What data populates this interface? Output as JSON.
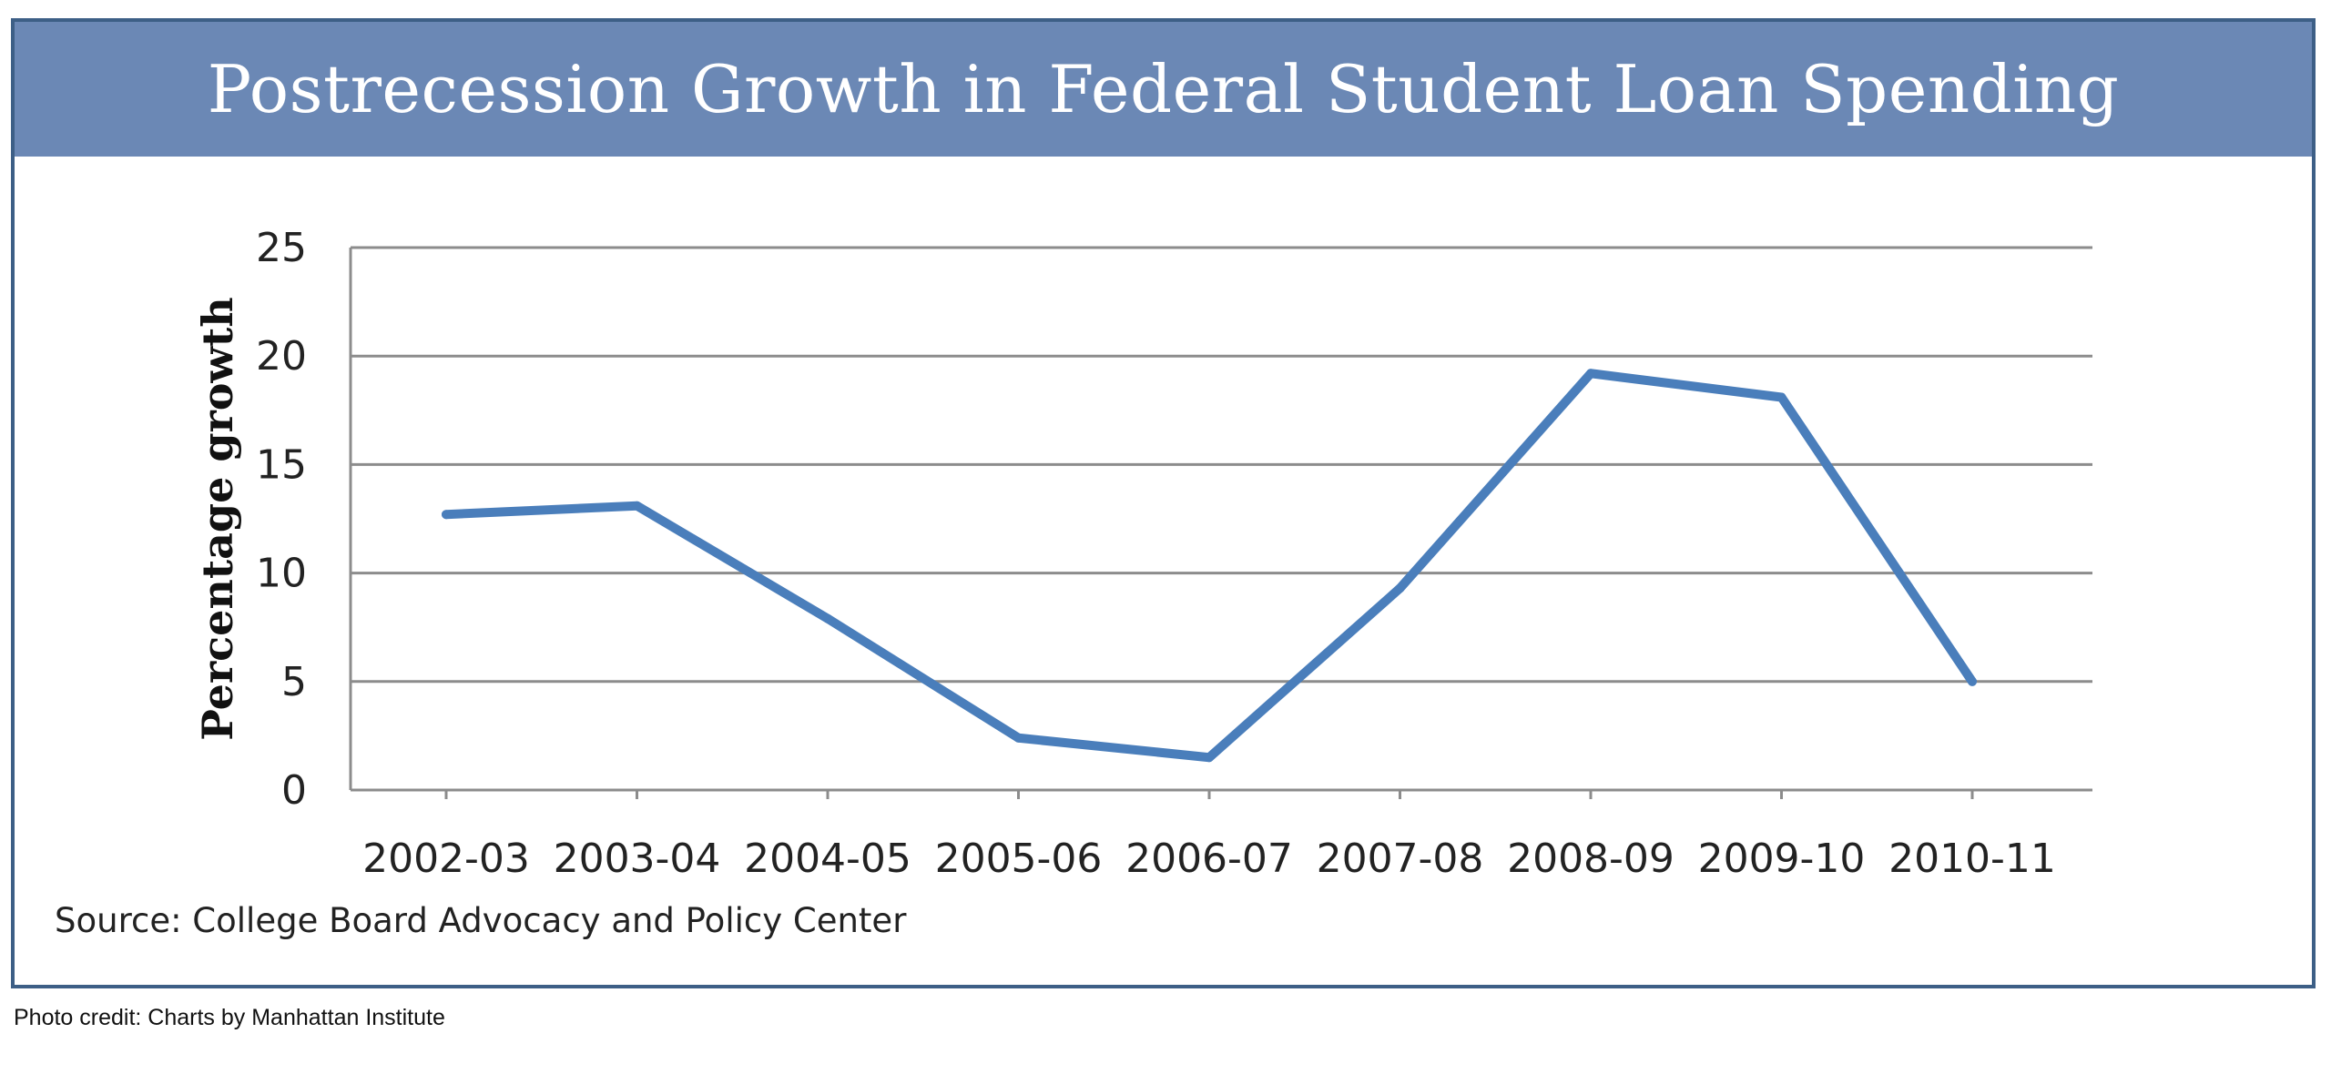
{
  "chart_data": {
    "type": "line",
    "title": "Postrecession Growth in Federal Student Loan Spending",
    "xlabel": "",
    "ylabel": "Percentage growth",
    "categories": [
      "2002-03",
      "2003-04",
      "2004-05",
      "2005-06",
      "2006-07",
      "2007-08",
      "2008-09",
      "2009-10",
      "2010-11"
    ],
    "series": [
      {
        "values": [
          12.7,
          13.1,
          7.9,
          2.4,
          1.5,
          9.3,
          19.2,
          18.1,
          5.0
        ]
      }
    ],
    "yticks": [
      0,
      5,
      10,
      15,
      20,
      25
    ],
    "ylim": [
      0,
      25
    ],
    "grid": true,
    "legend": "none",
    "line_color": "#4a7ebb",
    "grid_color": "#8c8c8c"
  },
  "source": "Source: College Board Advocacy and Policy Center",
  "credit": "Photo credit: Charts by Manhattan Institute",
  "colors": {
    "title_bar": "#6b88b5",
    "frame_border": "#3d5f86"
  }
}
